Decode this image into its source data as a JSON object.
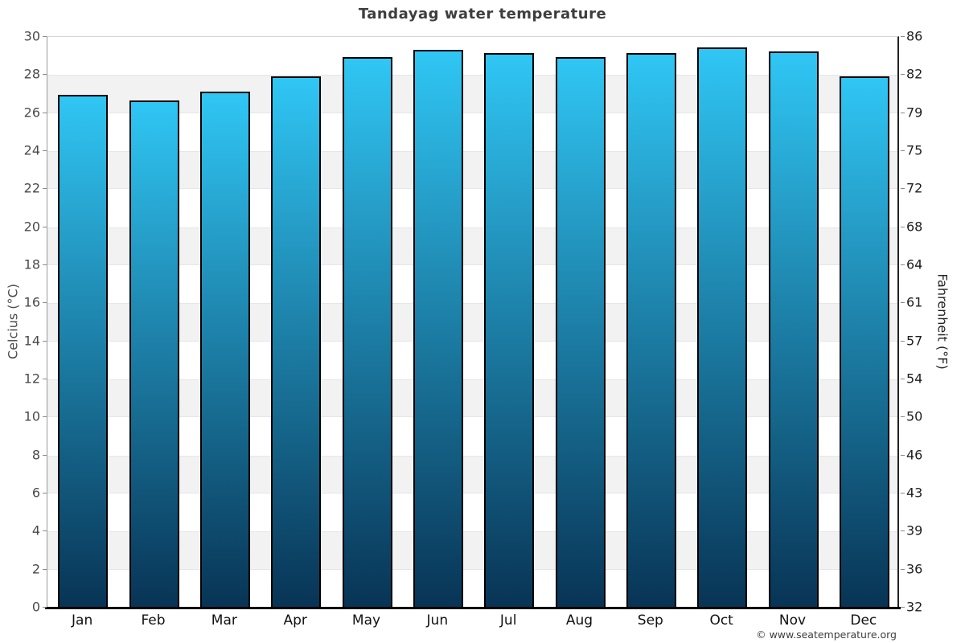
{
  "page": {
    "title": "Tandayag water temperature",
    "credit": "© www.seatemperature.org"
  },
  "chart_data": {
    "type": "bar",
    "title": "Tandayag water temperature",
    "categories": [
      "Jan",
      "Feb",
      "Mar",
      "Apr",
      "May",
      "Jun",
      "Jul",
      "Aug",
      "Sep",
      "Oct",
      "Nov",
      "Dec"
    ],
    "values": [
      26.9,
      26.6,
      27.1,
      27.9,
      28.9,
      29.3,
      29.1,
      28.9,
      29.1,
      29.4,
      29.2,
      27.9
    ],
    "unit": "°C",
    "ylabel_left": "Celcius (°C)",
    "ylabel_right": "Fahrenheit (°F)",
    "ylim": [
      0,
      30
    ],
    "ytick_step_celsius": 2,
    "yticks_celsius": [
      0,
      2,
      4,
      6,
      8,
      10,
      12,
      14,
      16,
      18,
      20,
      22,
      24,
      26,
      28,
      30
    ],
    "yticks_fahrenheit": [
      "32",
      "36",
      "39",
      "43",
      "46",
      "50",
      "54",
      "57",
      "61",
      "64",
      "68",
      "72",
      "75",
      "79",
      "82",
      "86"
    ],
    "grid": "horizontal-bands-every-2C",
    "legend": "none",
    "colors": {
      "bar_top": "#30c6f4",
      "bar_bottom": "#083455",
      "bar_border": "#000000",
      "band_light": "#ffffff",
      "band_dark": "#f2f2f2",
      "gridline": "#e6e6e6",
      "axis_text_left": "#4a4a4a",
      "axis_text_right": "#1f1f1f",
      "title_text": "#3e3e3e"
    }
  }
}
